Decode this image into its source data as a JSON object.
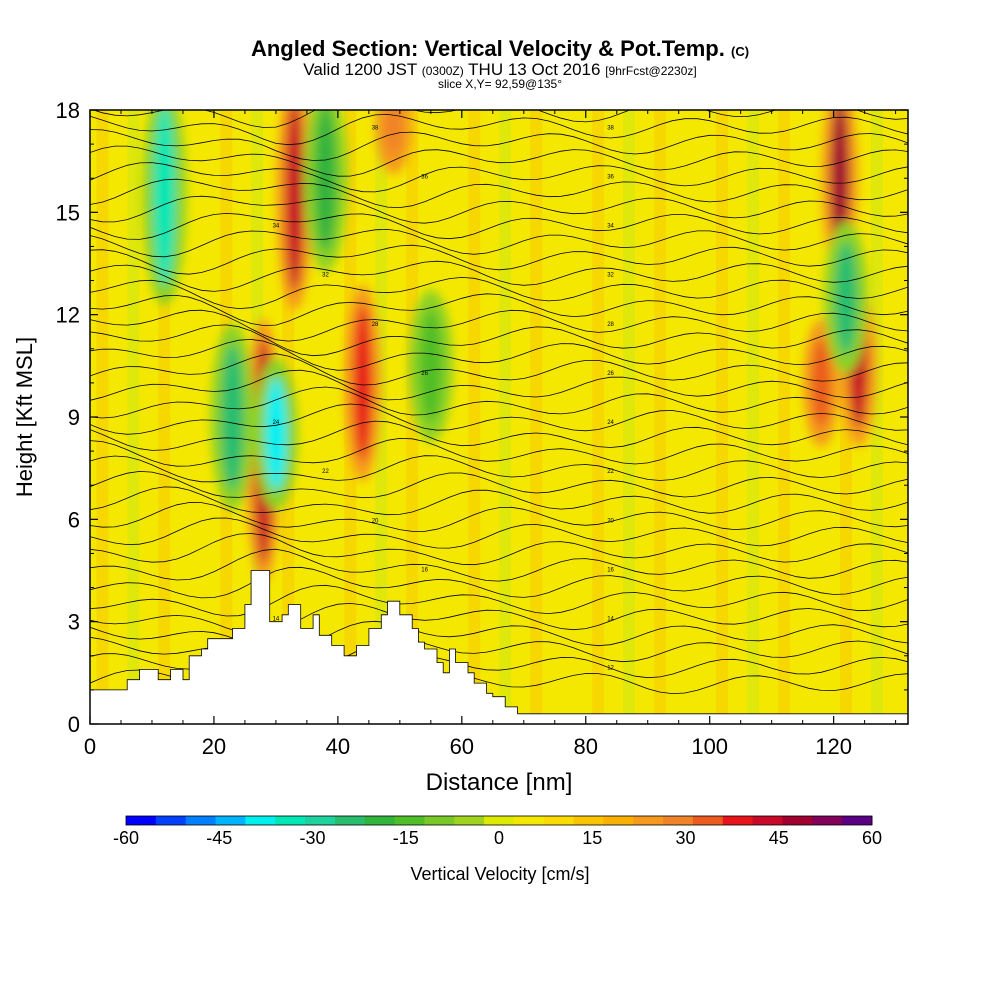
{
  "title": "Angled Section: Vertical Velocity & Pot.Temp.",
  "title_tag": "(C)",
  "subtitle": {
    "valid": "Valid 1200 JST",
    "zulu": "(0300Z)",
    "date": "THU 13 Oct 2016",
    "forecast": "[9hrFcst@2230z]"
  },
  "slice_label": "slice X,Y= 92,59@135°",
  "colors": {
    "background_yellow": "#f5e800",
    "mild_orange": "#fbc400",
    "orange": "#f59a1e",
    "red": "#e8141c",
    "dark_red": "#a00030",
    "yellow_green": "#c8e619",
    "light_green": "#8cd228",
    "green": "#3cb43c",
    "teal": "#1ed2a0",
    "cyan": "#00f0f0",
    "terrain": "#ffffff",
    "contour": "#000000"
  },
  "chart_data": {
    "type": "heatmap",
    "description_field": "vertical velocity (filled) with potential temperature contours",
    "xlabel": "Distance [nm]",
    "ylabel": "Height [Kft MSL]",
    "xlim": [
      0,
      132
    ],
    "ylim": [
      0,
      18
    ],
    "x_ticks": [
      0,
      20,
      40,
      60,
      80,
      100,
      120
    ],
    "y_ticks": [
      0,
      3,
      6,
      9,
      12,
      15,
      18
    ],
    "colorbar": {
      "label": "Vertical Velocity [cm/s]",
      "range": [
        -60,
        60
      ],
      "step": 5,
      "tick_labels": [
        "-60",
        "-45",
        "-30",
        "-15",
        "0",
        "15",
        "30",
        "45",
        "60"
      ],
      "colors": [
        "#0000ff",
        "#0040ff",
        "#0080ff",
        "#00b4ff",
        "#00f0f0",
        "#00e6b4",
        "#1ed2a0",
        "#28be6e",
        "#32b43c",
        "#50be28",
        "#78c828",
        "#a0d21e",
        "#dceb00",
        "#f5e800",
        "#fadc00",
        "#fbc400",
        "#fab000",
        "#f59a1e",
        "#f08228",
        "#eb5a1e",
        "#e8141c",
        "#c80a28",
        "#a00030",
        "#80005a",
        "#5a0082"
      ]
    },
    "updraft_columns": [
      {
        "x": 28,
        "y_bottom": 5,
        "y_top": 11,
        "w_max": 45
      },
      {
        "x": 33,
        "y_bottom": 13,
        "y_top": 18,
        "w_max": 45
      },
      {
        "x": 44,
        "y_bottom": 8,
        "y_top": 12,
        "w_max": 40
      },
      {
        "x": 49,
        "y_bottom": 17,
        "y_top": 18,
        "w_max": 30
      },
      {
        "x": 121,
        "y_bottom": 14,
        "y_top": 18,
        "w_max": 50
      },
      {
        "x": 124,
        "y_bottom": 9,
        "y_top": 12,
        "w_max": 45
      },
      {
        "x": 118,
        "y_bottom": 9,
        "y_top": 11,
        "w_max": 35
      }
    ],
    "downdraft_columns": [
      {
        "x": 12,
        "y_bottom": 13,
        "y_top": 18,
        "w_min": -35
      },
      {
        "x": 23,
        "y_bottom": 7,
        "y_top": 11,
        "w_min": -25
      },
      {
        "x": 30,
        "y_bottom": 7,
        "y_top": 10,
        "w_min": -40
      },
      {
        "x": 38,
        "y_bottom": 14,
        "y_top": 18,
        "w_min": -20
      },
      {
        "x": 55,
        "y_bottom": 9,
        "y_top": 12,
        "w_min": -15
      },
      {
        "x": 122,
        "y_bottom": 11,
        "y_top": 14,
        "w_min": -25
      }
    ],
    "terrain_profile": {
      "x": [
        0,
        0,
        6,
        6,
        8,
        8,
        11,
        11,
        13,
        13,
        15,
        15,
        16,
        16,
        18,
        18,
        19,
        19,
        23,
        23,
        25,
        25,
        26,
        26,
        27,
        27,
        29,
        29,
        31,
        31,
        32,
        32,
        34,
        34,
        36,
        36,
        37,
        37,
        39,
        39,
        41,
        41,
        43,
        43,
        45,
        45,
        47,
        47,
        48,
        48,
        50,
        50,
        52,
        52,
        53,
        53,
        54,
        54,
        56,
        56,
        57,
        57,
        58,
        58,
        59,
        59,
        61,
        61,
        62,
        62,
        64,
        64,
        65,
        65,
        67,
        67,
        69,
        69,
        72,
        72,
        132
      ],
      "height": [
        0.8,
        1.0,
        1.0,
        1.3,
        1.3,
        1.6,
        1.6,
        1.3,
        1.3,
        1.6,
        1.6,
        1.3,
        1.3,
        2.0,
        2.0,
        2.2,
        2.2,
        2.5,
        2.5,
        2.8,
        2.8,
        3.5,
        3.5,
        4.5,
        4.5,
        4.5,
        4.5,
        3.0,
        3.0,
        3.2,
        3.2,
        3.5,
        3.5,
        2.8,
        2.8,
        3.2,
        3.2,
        2.6,
        2.6,
        2.3,
        2.3,
        2.0,
        2.0,
        2.3,
        2.3,
        2.8,
        2.8,
        3.2,
        3.2,
        3.6,
        3.6,
        3.2,
        3.2,
        2.8,
        2.8,
        2.4,
        2.4,
        2.2,
        2.2,
        1.8,
        1.8,
        1.5,
        1.5,
        2.2,
        2.2,
        1.8,
        1.8,
        1.5,
        1.5,
        1.2,
        1.2,
        0.9,
        0.9,
        0.8,
        0.8,
        0.5,
        0.5,
        0.3,
        0.3,
        0.3,
        0.3
      ]
    },
    "theta_contours": {
      "levels": [
        12,
        14,
        16,
        18,
        20,
        22,
        24,
        26,
        28,
        30,
        32,
        34,
        36,
        38,
        40
      ],
      "label_units": "C",
      "annotated_labels": [
        "12",
        "14",
        "16",
        "18",
        "20",
        "22",
        "24",
        "26",
        "28",
        "30",
        "32",
        "34",
        "36",
        "38",
        "40"
      ]
    }
  }
}
